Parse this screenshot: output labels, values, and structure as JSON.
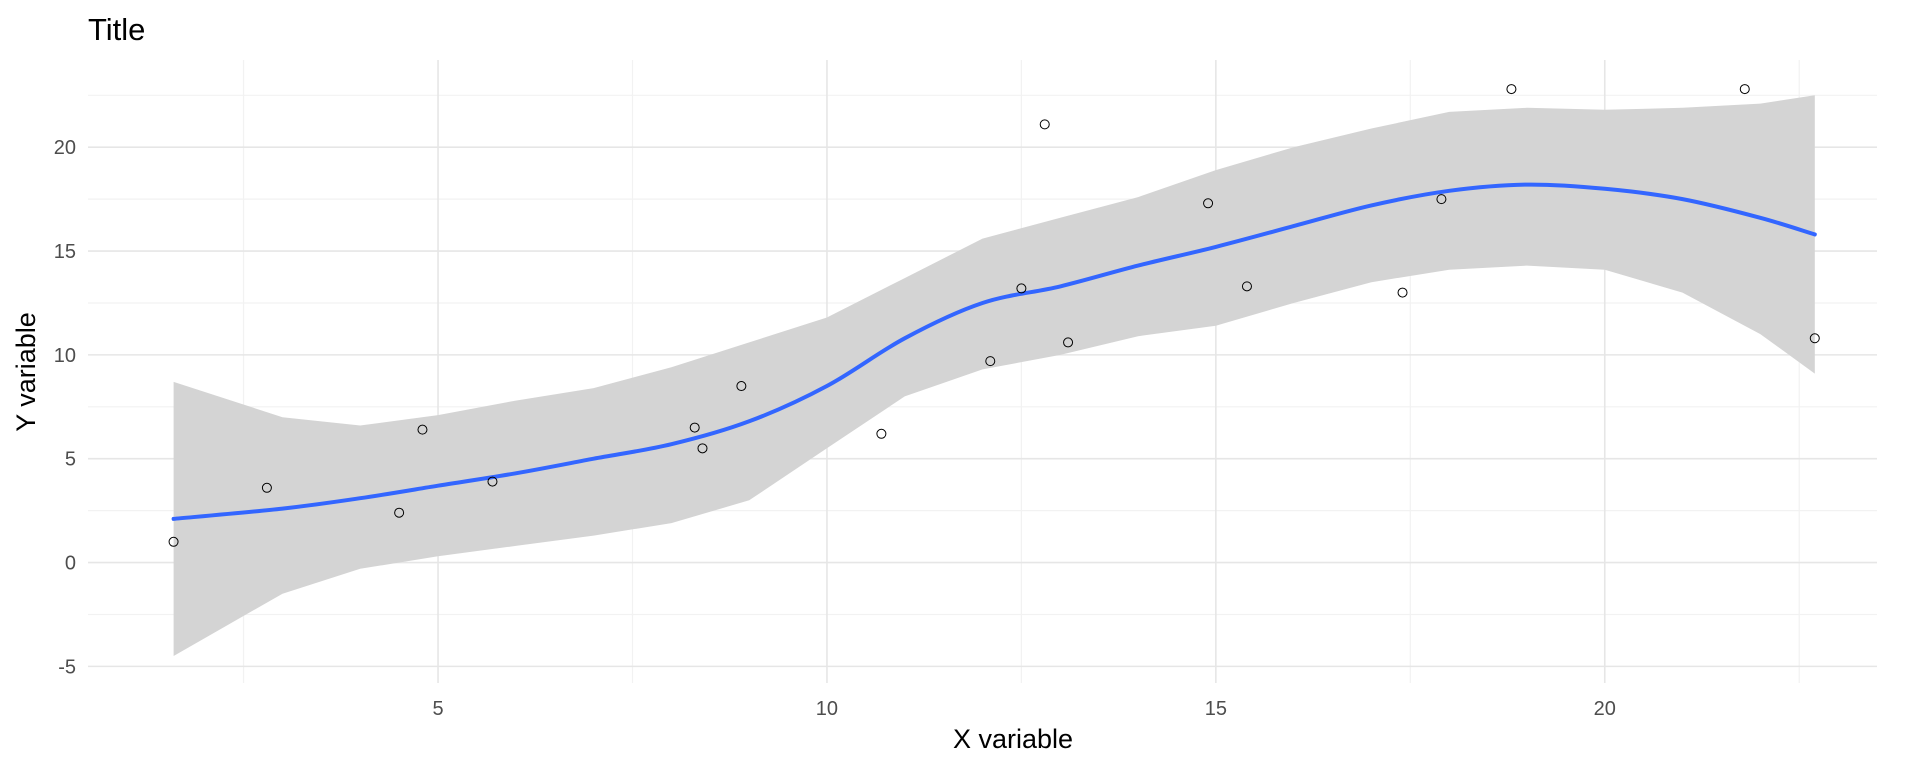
{
  "chart_data": {
    "type": "scatter",
    "title": "Title",
    "xlabel": "X variable",
    "ylabel": "Y variable",
    "xlim": [
      0.5,
      23.5
    ],
    "ylim": [
      -5.8,
      24.2
    ],
    "x_ticks": [
      5,
      10,
      15,
      20
    ],
    "y_ticks": [
      -5,
      0,
      5,
      10,
      15,
      20
    ],
    "grid": true,
    "colors": {
      "points_stroke": "#000000",
      "smooth_line": "#3366FF",
      "ribbon": "#d4d4d4",
      "grid_major": "#e6e6e6",
      "grid_minor": "#f2f2f2"
    },
    "points": [
      {
        "x": 1.6,
        "y": 1.0
      },
      {
        "x": 2.8,
        "y": 3.6
      },
      {
        "x": 4.5,
        "y": 2.4
      },
      {
        "x": 4.8,
        "y": 6.4
      },
      {
        "x": 5.7,
        "y": 3.9
      },
      {
        "x": 8.3,
        "y": 6.5
      },
      {
        "x": 8.4,
        "y": 5.5
      },
      {
        "x": 8.9,
        "y": 8.5
      },
      {
        "x": 10.7,
        "y": 6.2
      },
      {
        "x": 12.1,
        "y": 9.7
      },
      {
        "x": 12.5,
        "y": 13.2
      },
      {
        "x": 12.8,
        "y": 21.1
      },
      {
        "x": 13.1,
        "y": 10.6
      },
      {
        "x": 14.9,
        "y": 17.3
      },
      {
        "x": 15.4,
        "y": 13.3
      },
      {
        "x": 17.4,
        "y": 13.0
      },
      {
        "x": 17.9,
        "y": 17.5
      },
      {
        "x": 18.8,
        "y": 22.8
      },
      {
        "x": 21.8,
        "y": 22.8
      },
      {
        "x": 22.7,
        "y": 10.8
      }
    ],
    "smooth": {
      "x": [
        1.6,
        3.0,
        4.0,
        5.0,
        6.0,
        7.0,
        8.0,
        9.0,
        10.0,
        11.0,
        12.0,
        13.0,
        14.0,
        15.0,
        16.0,
        17.0,
        18.0,
        19.0,
        20.0,
        21.0,
        22.0,
        22.7
      ],
      "y": [
        2.1,
        2.6,
        3.1,
        3.7,
        4.3,
        5.0,
        5.7,
        6.8,
        8.5,
        10.8,
        12.5,
        13.3,
        14.3,
        15.2,
        16.2,
        17.2,
        17.9,
        18.2,
        18.0,
        17.5,
        16.6,
        15.8
      ],
      "lower": [
        -4.5,
        -1.5,
        -0.3,
        0.3,
        0.8,
        1.3,
        1.9,
        3.0,
        5.5,
        8.0,
        9.3,
        10.0,
        10.9,
        11.4,
        12.5,
        13.5,
        14.1,
        14.3,
        14.1,
        13.0,
        11.0,
        9.1
      ],
      "upper": [
        8.7,
        7.0,
        6.6,
        7.1,
        7.8,
        8.4,
        9.4,
        10.6,
        11.8,
        13.7,
        15.6,
        16.6,
        17.6,
        18.9,
        20.0,
        20.9,
        21.7,
        21.9,
        21.8,
        21.9,
        22.1,
        22.5
      ]
    }
  }
}
